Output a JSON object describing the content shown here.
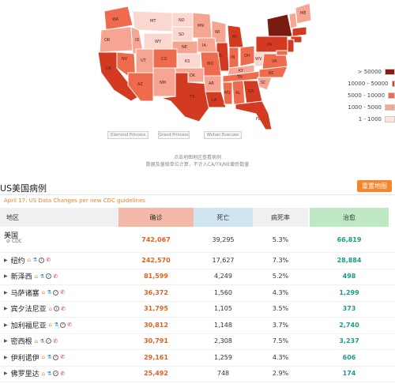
{
  "map": {
    "states": {
      "wa": "WA",
      "mt": "MT",
      "nd": "ND",
      "mn": "MN",
      "id": "ID",
      "sd": "SD",
      "wy": "WY",
      "nv": "NV",
      "ut": "UT",
      "co": "CO",
      "ne": "NE",
      "ks": "KS",
      "az": "AZ",
      "nm": "NM",
      "ok": "OK",
      "tx": "TX",
      "ia": "IA",
      "mo": "MO",
      "ar": "AR",
      "la": "LA",
      "ms": "MS",
      "al": "AL",
      "ga": "GA",
      "fl": "FL",
      "sc": "SC",
      "nc": "NC",
      "tn": "TN",
      "ky": "KY",
      "va": "VA",
      "wv": "WV",
      "oh": "OH",
      "in": "IN",
      "il": "IL",
      "wi": "WI",
      "mi": "MI",
      "pa": "PA",
      "ny": "NY",
      "me": "ME",
      "ca": "CA",
      "or": "OR"
    },
    "colors": {
      "c1": "#7b1a10",
      "c2": "#d23a22",
      "c3": "#ef6b4d",
      "c4": "#f6a593",
      "c5": "#fbd8cf"
    }
  },
  "legend": {
    "items": [
      {
        "label": "> 50000",
        "color": "#8b1c12"
      },
      {
        "label": "10000 - 50000",
        "color": "#d23a22"
      },
      {
        "label": "5000 - 10000",
        "color": "#ef6b4d"
      },
      {
        "label": "1000 - 5000",
        "color": "#f6a593"
      },
      {
        "label": "1 - 1000",
        "color": "#fde4dc"
      }
    ]
  },
  "map_buttons": [
    "Diamond Princess",
    "Grand Princess",
    "Wuhan Evacuee"
  ],
  "notes": [
    "点击地图地区查看病例",
    "数据及量级单位计算，不计入CA/TX/NE撤侨数量"
  ],
  "section": {
    "title": "US美国病例",
    "button": "重置地图"
  },
  "guide": "April 17: US Data Changes per new CDC guidelines",
  "table": {
    "headers": {
      "region": "地区",
      "confirmed": "确诊",
      "deaths": "死亡",
      "rate": "病死率",
      "recovered": "治愈"
    },
    "us": {
      "name": "美国",
      "source": "CDC",
      "confirmed": "742,067",
      "deaths": "39,295",
      "rate": "5.3%",
      "recovered": "66,819"
    },
    "rows": [
      {
        "name": "纽约",
        "confirmed": "242,570",
        "deaths": "17,627",
        "rate": "7.3%",
        "recovered": "28,884"
      },
      {
        "name": "新泽西",
        "confirmed": "81,599",
        "deaths": "4,249",
        "rate": "5.2%",
        "recovered": "498"
      },
      {
        "name": "马萨诸塞",
        "confirmed": "36,372",
        "deaths": "1,560",
        "rate": "4.3%",
        "recovered": "1,299"
      },
      {
        "name": "宾夕法尼亚",
        "confirmed": "31,795",
        "deaths": "1,105",
        "rate": "3.5%",
        "recovered": "373"
      },
      {
        "name": "加利福尼亚",
        "confirmed": "30,812",
        "deaths": "1,148",
        "rate": "3.7%",
        "recovered": "2,740"
      },
      {
        "name": "密西根",
        "confirmed": "30,791",
        "deaths": "2,308",
        "rate": "7.5%",
        "recovered": "3,237"
      },
      {
        "name": "伊利诺伊",
        "confirmed": "29,161",
        "deaths": "1,259",
        "rate": "4.3%",
        "recovered": "606"
      },
      {
        "name": "佛罗里达",
        "confirmed": "25,492",
        "deaths": "748",
        "rate": "2.9%",
        "recovered": "174"
      }
    ]
  }
}
